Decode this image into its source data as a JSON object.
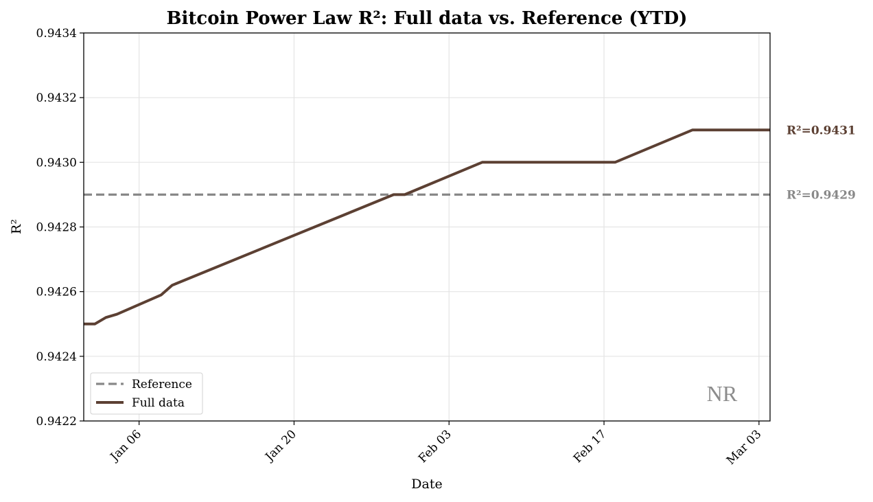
{
  "chart_data": {
    "type": "line",
    "title": "Bitcoin Power Law R²: Full data vs. Reference (YTD)",
    "xlabel": "Date",
    "ylabel": "R²",
    "ylim": [
      0.9422,
      0.9434
    ],
    "xlim": [
      "2025-01-01",
      "2025-03-04"
    ],
    "yticks": [
      0.9422,
      0.9424,
      0.9426,
      0.9428,
      0.943,
      0.9432,
      0.9434
    ],
    "ytick_labels": [
      "0.9422",
      "0.9424",
      "0.9426",
      "0.9428",
      "0.9430",
      "0.9432",
      "0.9434"
    ],
    "xticks": [
      "2025-01-06",
      "2025-01-20",
      "2025-02-03",
      "2025-02-17",
      "2025-03-03"
    ],
    "xtick_labels": [
      "Jan 06",
      "Jan 20",
      "Feb 03",
      "Feb 17",
      "Mar 03"
    ],
    "grid": true,
    "legend_position": "lower-left",
    "series": [
      {
        "name": "Reference",
        "color": "#888888",
        "style": "dashed",
        "x": [
          "2025-01-01",
          "2025-03-04"
        ],
        "values": [
          0.9429,
          0.9429
        ],
        "end_label": "R²=0.9429"
      },
      {
        "name": "Full data",
        "color": "#5c4033",
        "style": "solid",
        "x": [
          "2025-01-01",
          "2025-01-02",
          "2025-01-03",
          "2025-01-04",
          "2025-01-08",
          "2025-01-09",
          "2025-01-29",
          "2025-01-30",
          "2025-02-06",
          "2025-02-18",
          "2025-02-25",
          "2025-03-04"
        ],
        "values": [
          0.9425,
          0.9425,
          0.94252,
          0.94253,
          0.94259,
          0.94262,
          0.9429,
          0.9429,
          0.943,
          0.943,
          0.9431,
          0.9431
        ],
        "end_label": "R²=0.9431"
      }
    ],
    "watermark": "NR"
  }
}
